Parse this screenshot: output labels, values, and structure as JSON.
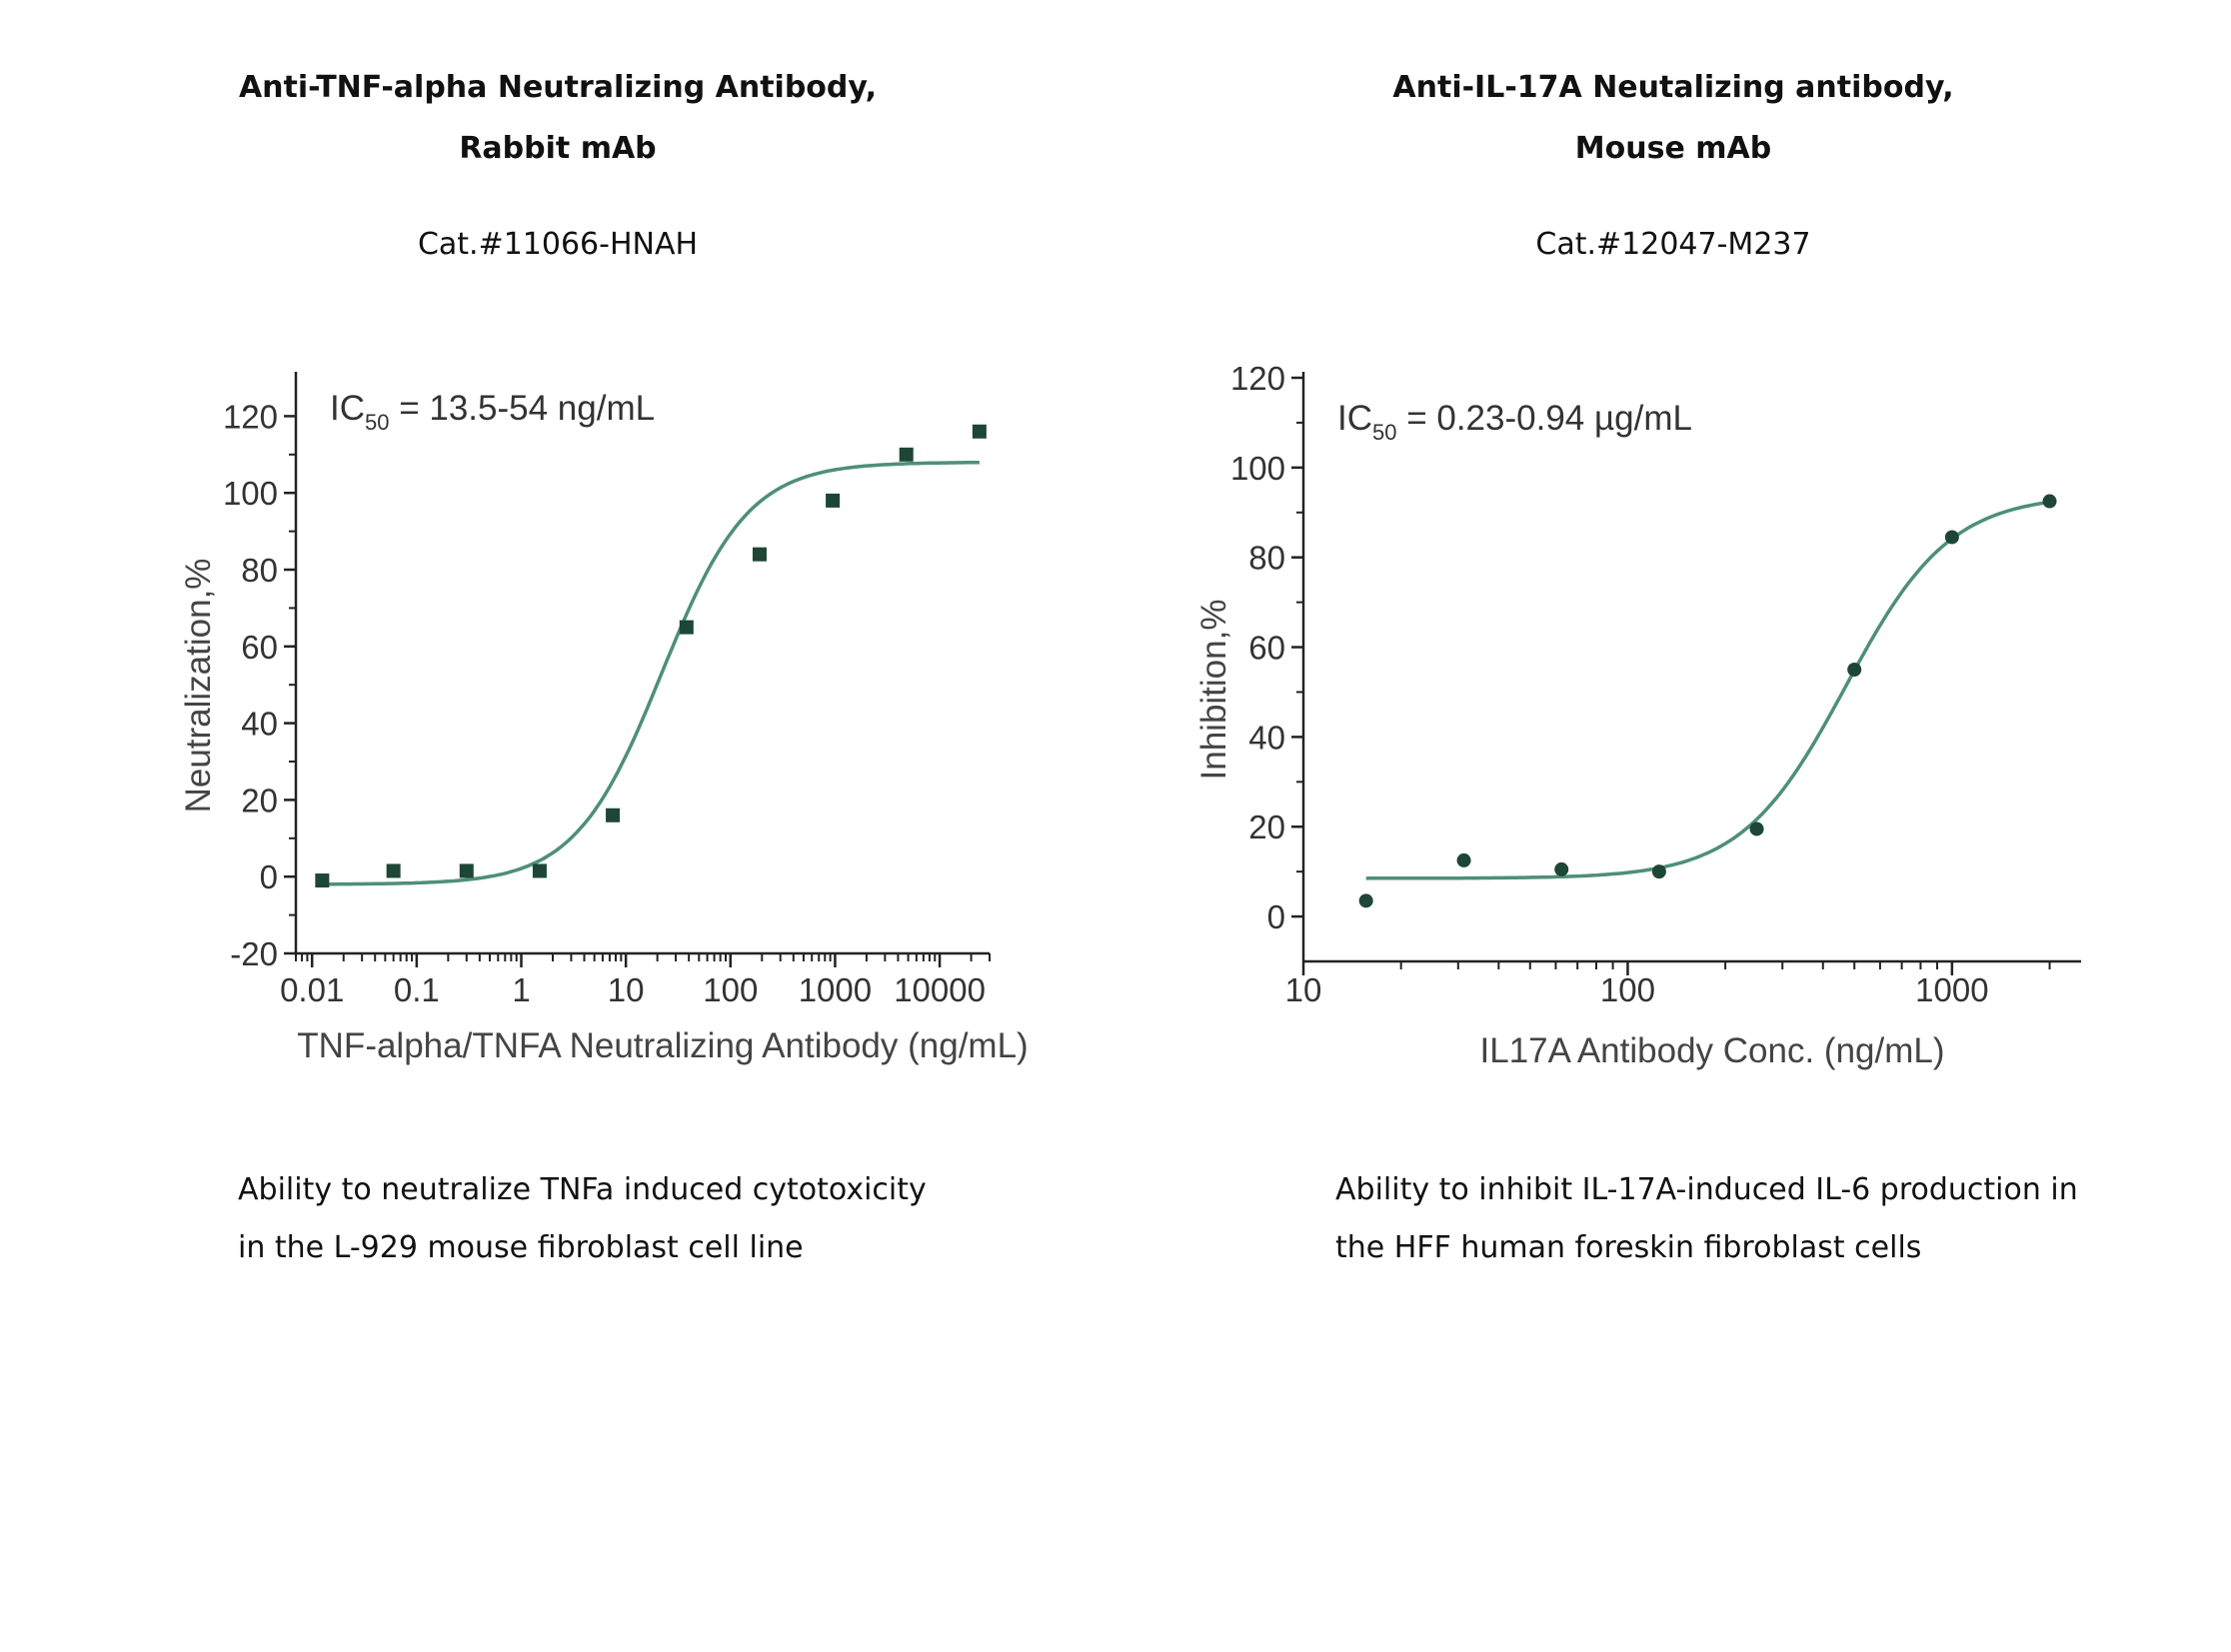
{
  "colors": {
    "curve": "#4e8f78",
    "points": "#1d4637",
    "axis": "#222222"
  },
  "panels": [
    {
      "title_line1": "Anti-TNF-alpha Neutralizing Antibody,",
      "title_line2": "Rabbit mAb",
      "cat": "Cat.#11066-HNAH",
      "caption_line1": "Ability to neutralize TNFa induced cytotoxicity",
      "caption_line2": "in the L-929 mouse fibroblast  cell line"
    },
    {
      "title_line1": "Anti-IL-17A Neutalizing antibody,",
      "title_line2": "Mouse mAb",
      "cat": "Cat.#12047-M237",
      "caption_line1": "Ability to inhibit IL-17A-induced IL-6 production in",
      "caption_line2": "the HFF human foreskin fibroblast cells"
    }
  ],
  "chart_data": [
    {
      "type": "scatter",
      "marker": "square",
      "fit_curve": "sigmoid",
      "xscale": "log",
      "xlim": [
        0.007,
        30000
      ],
      "ylim": [
        -20,
        130
      ],
      "xticks": [
        0.01,
        0.1,
        1,
        10,
        100,
        1000,
        10000
      ],
      "xtick_labels": [
        "0.01",
        "0.1",
        "1",
        "10",
        "100",
        "1000",
        "10000"
      ],
      "yticks": [
        -20,
        0,
        20,
        40,
        60,
        80,
        100,
        120
      ],
      "ytick_labels": [
        "-20",
        "0",
        "20",
        "40",
        "60",
        "80",
        "100",
        "120"
      ],
      "xlabel": "TNF-alpha/TNFA Neutralizing Antibody (ng/mL)",
      "ylabel": "Neutralization,%",
      "annotation": {
        "prefix": "IC",
        "sub": "50",
        "rest": " = 13.5-54 ng/mL"
      },
      "x": [
        0.0125,
        0.06,
        0.3,
        1.5,
        7.5,
        38,
        190,
        950,
        4800,
        24000
      ],
      "y": [
        -1,
        1.5,
        1.5,
        1.5,
        16,
        65,
        84,
        98,
        110,
        116
      ],
      "fit": {
        "bottom": -2,
        "top": 108,
        "ec50": 22,
        "hill": 1.05
      }
    },
    {
      "type": "scatter",
      "marker": "circle",
      "fit_curve": "sigmoid",
      "xscale": "log",
      "xlim": [
        10,
        2500
      ],
      "ylim": [
        -10,
        120
      ],
      "xticks": [
        10,
        100,
        1000
      ],
      "xtick_labels": [
        "10",
        "100",
        "1000"
      ],
      "yticks": [
        0,
        20,
        40,
        60,
        80,
        100,
        120
      ],
      "ytick_labels": [
        "0",
        "20",
        "40",
        "60",
        "80",
        "100",
        "120"
      ],
      "xlabel": "IL17A Antibody Conc. (ng/mL)",
      "ylabel": "Inhibition,%",
      "annotation": {
        "prefix": "IC",
        "sub": "50",
        "rest": " = 0.23-0.94 µg/mL"
      },
      "x": [
        15.6,
        31.25,
        62.5,
        125,
        250,
        500,
        1000,
        2000
      ],
      "y": [
        3.5,
        12.5,
        10.5,
        10,
        19.5,
        55,
        84.5,
        92.5
      ],
      "fit": {
        "bottom": 8.5,
        "top": 94,
        "ec50": 470,
        "hill": 2.7
      }
    }
  ]
}
